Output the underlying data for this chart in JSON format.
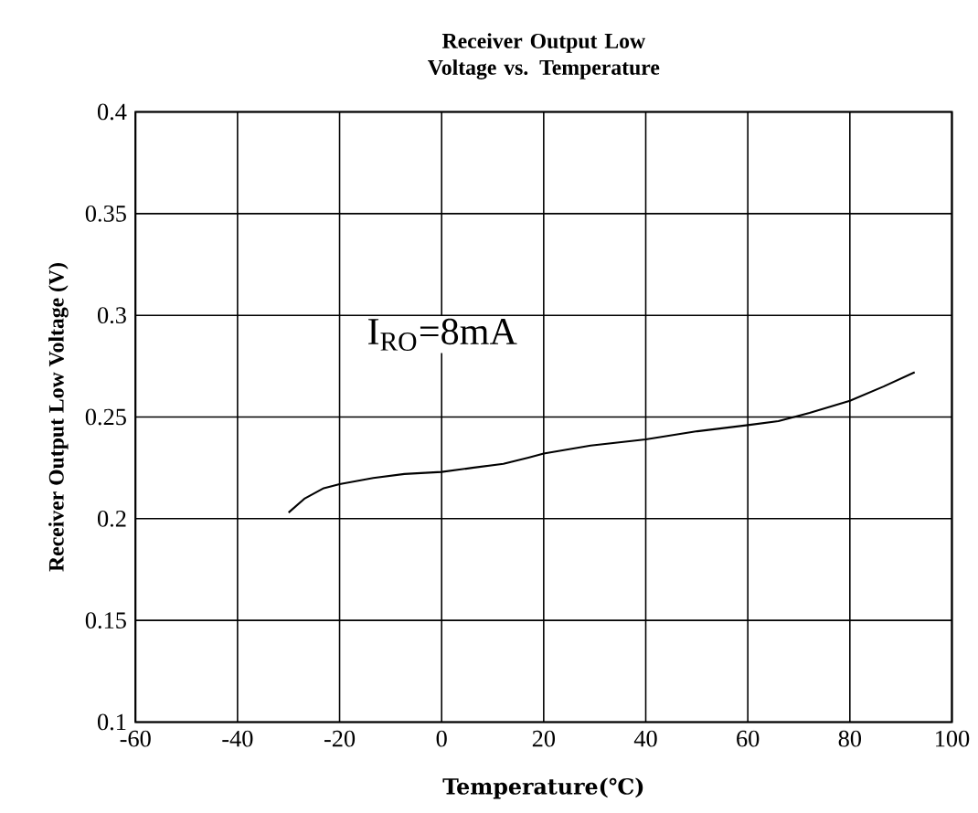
{
  "chart_data": {
    "type": "line",
    "title": "Receiver Output Low Voltage vs. Temperature",
    "xlabel": "Temperature(℃)",
    "ylabel": "Receiver Output Low Voltage (V)",
    "annotations": [
      "I$_{RO}$=8mA"
    ],
    "x": [
      -30,
      -26.8,
      -23.1,
      -20,
      -13.4,
      -7.3,
      0,
      6,
      12.1,
      17,
      20,
      29.2,
      40,
      50.1,
      60,
      66,
      72.1,
      80,
      86.6,
      92.7
    ],
    "series": [
      {
        "color": "#000000",
        "values": [
          0.203,
          0.21,
          0.215,
          0.217,
          0.22,
          0.222,
          0.223,
          0.225,
          0.227,
          0.23,
          0.232,
          0.236,
          0.239,
          0.243,
          0.246,
          0.248,
          0.252,
          0.258,
          0.265,
          0.272
        ]
      }
    ],
    "xlim": [
      -60,
      100
    ],
    "ylim": [
      0.1,
      0.4
    ],
    "xticks": [
      -60,
      -40,
      -20,
      0,
      20,
      40,
      60,
      80,
      100
    ],
    "yticks": [
      0.1,
      0.15,
      0.2,
      0.25,
      0.3,
      0.35,
      0.4
    ],
    "grid": true,
    "marker": "none",
    "line_style": "solid"
  }
}
